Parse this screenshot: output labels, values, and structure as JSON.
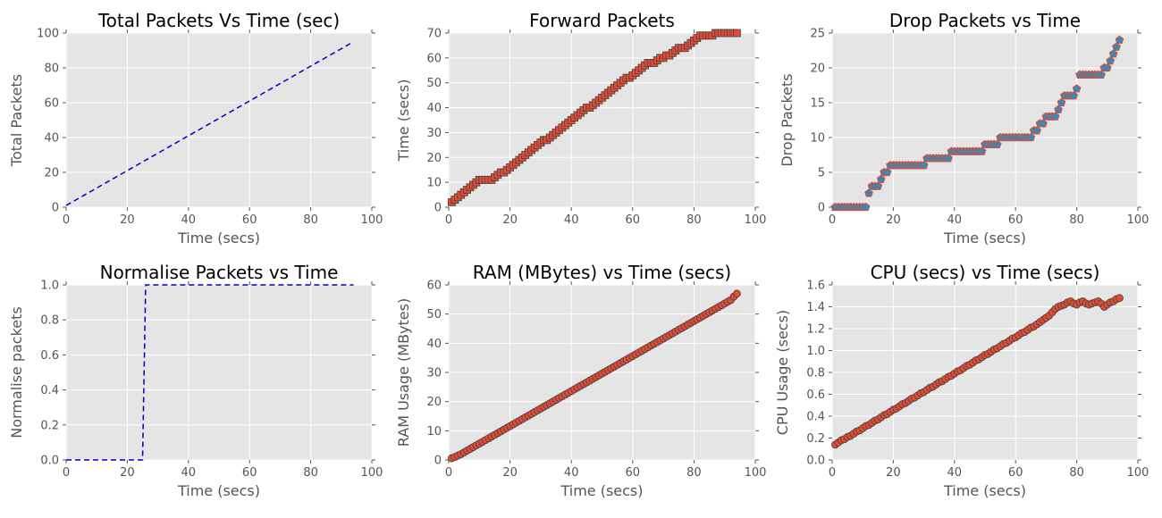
{
  "colors": {
    "plot_bg": "#e5e5e5",
    "grid": "#ffffff",
    "tick": "#555555",
    "line": "#0000cc",
    "marker_red": "#e24a33",
    "marker_blue": "#348abd",
    "marker_edge": "#444444"
  },
  "chart_data": [
    {
      "id": "total",
      "type": "line",
      "title": "Total Packets Vs Time (sec)",
      "xlabel": "Time (secs)",
      "ylabel": "Total Packets",
      "xlim": [
        0,
        100
      ],
      "ylim": [
        0,
        100
      ],
      "xticks": [
        0,
        20,
        40,
        60,
        80,
        100
      ],
      "yticks": [
        0,
        20,
        40,
        60,
        80,
        100
      ],
      "tick_labels_x": [
        "0",
        "20",
        "40",
        "60",
        "80",
        "100"
      ],
      "tick_labels_y": [
        "0",
        "20",
        "40",
        "60",
        "80",
        "100"
      ],
      "style": "dashed",
      "x": [
        0,
        94
      ],
      "y": [
        1,
        95
      ]
    },
    {
      "id": "forward",
      "type": "scatter",
      "title": "Forward Packets",
      "xlabel": "",
      "ylabel": "Time (secs)",
      "xlim": [
        0,
        100
      ],
      "ylim": [
        0,
        70
      ],
      "xticks": [
        0,
        20,
        40,
        60,
        80,
        100
      ],
      "yticks": [
        0,
        10,
        20,
        30,
        40,
        50,
        60,
        70
      ],
      "tick_labels_x": [
        "0",
        "20",
        "40",
        "60",
        "80",
        "100"
      ],
      "tick_labels_y": [
        "0",
        "10",
        "20",
        "30",
        "40",
        "50",
        "60",
        "70"
      ],
      "marker": "square",
      "x": [
        1,
        2,
        3,
        4,
        5,
        6,
        7,
        8,
        9,
        10,
        11,
        12,
        13,
        14,
        15,
        16,
        17,
        18,
        19,
        20,
        21,
        22,
        23,
        24,
        25,
        26,
        27,
        28,
        29,
        30,
        31,
        32,
        33,
        34,
        35,
        36,
        37,
        38,
        39,
        40,
        41,
        42,
        43,
        44,
        45,
        46,
        47,
        48,
        49,
        50,
        51,
        52,
        53,
        54,
        55,
        56,
        57,
        58,
        59,
        60,
        61,
        62,
        63,
        64,
        65,
        66,
        67,
        68,
        69,
        70,
        71,
        72,
        73,
        74,
        75,
        76,
        77,
        78,
        79,
        80,
        81,
        82,
        83,
        84,
        85,
        86,
        87,
        88,
        89,
        90,
        91,
        92,
        93,
        94
      ],
      "y": [
        2,
        3,
        4,
        5,
        6,
        7,
        8,
        9,
        10,
        11,
        11,
        11,
        11,
        11,
        12,
        13,
        14,
        14,
        15,
        16,
        17,
        18,
        19,
        20,
        21,
        22,
        23,
        24,
        25,
        26,
        27,
        27,
        28,
        29,
        30,
        31,
        32,
        33,
        34,
        35,
        36,
        37,
        38,
        39,
        40,
        40,
        41,
        42,
        43,
        44,
        45,
        46,
        47,
        48,
        49,
        50,
        51,
        52,
        52,
        53,
        54,
        55,
        56,
        57,
        58,
        58,
        58,
        59,
        60,
        60,
        61,
        61,
        62,
        63,
        64,
        64,
        64,
        65,
        66,
        67,
        68,
        69,
        69,
        69,
        69,
        69,
        70,
        70,
        70,
        70,
        70,
        70,
        70,
        70
      ]
    },
    {
      "id": "drop",
      "type": "scatter",
      "title": "Drop Packets vs Time",
      "xlabel": "Time (secs)",
      "ylabel": "Drop Packets",
      "xlim": [
        0,
        100
      ],
      "ylim": [
        0,
        25
      ],
      "xticks": [
        0,
        20,
        40,
        60,
        80,
        100
      ],
      "yticks": [
        0,
        5,
        10,
        15,
        20,
        25
      ],
      "tick_labels_x": [
        "0",
        "20",
        "40",
        "60",
        "80",
        "100"
      ],
      "tick_labels_y": [
        "0",
        "5",
        "10",
        "15",
        "20",
        "25"
      ],
      "marker": "pentagon",
      "x": [
        1,
        2,
        3,
        4,
        5,
        6,
        7,
        8,
        9,
        10,
        11,
        12,
        13,
        14,
        15,
        16,
        17,
        18,
        19,
        20,
        21,
        22,
        23,
        24,
        25,
        26,
        27,
        28,
        29,
        30,
        31,
        32,
        33,
        34,
        35,
        36,
        37,
        38,
        39,
        40,
        41,
        42,
        43,
        44,
        45,
        46,
        47,
        48,
        49,
        50,
        51,
        52,
        53,
        54,
        55,
        56,
        57,
        58,
        59,
        60,
        61,
        62,
        63,
        64,
        65,
        66,
        67,
        68,
        69,
        70,
        71,
        72,
        73,
        74,
        75,
        76,
        77,
        78,
        79,
        80,
        81,
        82,
        83,
        84,
        85,
        86,
        87,
        88,
        89,
        90,
        91,
        92,
        93,
        94
      ],
      "y": [
        0,
        0,
        0,
        0,
        0,
        0,
        0,
        0,
        0,
        0,
        0,
        2,
        3,
        3,
        3,
        4,
        5,
        5,
        6,
        6,
        6,
        6,
        6,
        6,
        6,
        6,
        6,
        6,
        6,
        6,
        7,
        7,
        7,
        7,
        7,
        7,
        7,
        7,
        8,
        8,
        8,
        8,
        8,
        8,
        8,
        8,
        8,
        8,
        8,
        9,
        9,
        9,
        9,
        9,
        10,
        10,
        10,
        10,
        10,
        10,
        10,
        10,
        10,
        10,
        10,
        11,
        11,
        12,
        12,
        13,
        13,
        13,
        13,
        14,
        15,
        16,
        16,
        16,
        16,
        17,
        19,
        19,
        19,
        19,
        19,
        19,
        19,
        19,
        20,
        20,
        21,
        22,
        23,
        24
      ]
    },
    {
      "id": "normalise",
      "type": "line",
      "title": "Normalise Packets vs Time",
      "xlabel": "Time (secs)",
      "ylabel": "Normalise packets",
      "xlim": [
        0,
        100
      ],
      "ylim": [
        0.0,
        1.0
      ],
      "xticks": [
        0,
        20,
        40,
        60,
        80,
        100
      ],
      "yticks": [
        0.0,
        0.2,
        0.4,
        0.6,
        0.8,
        1.0
      ],
      "tick_labels_x": [
        "0",
        "20",
        "40",
        "60",
        "80",
        "100"
      ],
      "tick_labels_y": [
        "0.0",
        "0.2",
        "0.4",
        "0.6",
        "0.8",
        "1.0"
      ],
      "style": "dashed",
      "x": [
        0,
        25,
        26,
        94
      ],
      "y": [
        0.0,
        0.0,
        1.0,
        1.0
      ]
    },
    {
      "id": "ram",
      "type": "scatter",
      "title": "RAM (MBytes) vs Time (secs)",
      "xlabel": "Time (secs)",
      "ylabel": "RAM Usage (MBytes)",
      "xlim": [
        0,
        100
      ],
      "ylim": [
        0,
        60
      ],
      "xticks": [
        0,
        20,
        40,
        60,
        80,
        100
      ],
      "yticks": [
        0,
        10,
        20,
        30,
        40,
        50,
        60
      ],
      "tick_labels_x": [
        "0",
        "20",
        "40",
        "60",
        "80",
        "100"
      ],
      "tick_labels_y": [
        "0",
        "10",
        "20",
        "30",
        "40",
        "50",
        "60"
      ],
      "marker": "circle",
      "x": [
        1,
        2,
        3,
        4,
        5,
        6,
        7,
        8,
        9,
        10,
        11,
        12,
        13,
        14,
        15,
        16,
        17,
        18,
        19,
        20,
        21,
        22,
        23,
        24,
        25,
        26,
        27,
        28,
        29,
        30,
        31,
        32,
        33,
        34,
        35,
        36,
        37,
        38,
        39,
        40,
        41,
        42,
        43,
        44,
        45,
        46,
        47,
        48,
        49,
        50,
        51,
        52,
        53,
        54,
        55,
        56,
        57,
        58,
        59,
        60,
        61,
        62,
        63,
        64,
        65,
        66,
        67,
        68,
        69,
        70,
        71,
        72,
        73,
        74,
        75,
        76,
        77,
        78,
        79,
        80,
        81,
        82,
        83,
        84,
        85,
        86,
        87,
        88,
        89,
        90,
        91,
        92,
        93,
        94
      ],
      "y": [
        0.6,
        1.0,
        1.5,
        2.0,
        2.6,
        3.2,
        3.8,
        4.4,
        5.0,
        5.6,
        6.2,
        6.8,
        7.4,
        8.0,
        8.6,
        9.2,
        9.8,
        10.4,
        11.0,
        11.6,
        12.2,
        12.8,
        13.4,
        14.0,
        14.6,
        15.2,
        15.8,
        16.4,
        17.0,
        17.6,
        18.2,
        18.8,
        19.4,
        20.0,
        20.6,
        21.2,
        21.8,
        22.4,
        23.0,
        23.6,
        24.2,
        24.8,
        25.4,
        26.0,
        26.6,
        27.2,
        27.8,
        28.4,
        29.0,
        29.6,
        30.2,
        30.8,
        31.4,
        32.0,
        32.6,
        33.2,
        33.8,
        34.4,
        35.0,
        35.6,
        36.2,
        36.8,
        37.4,
        38.0,
        38.6,
        39.2,
        39.8,
        40.4,
        41.0,
        41.6,
        42.2,
        42.8,
        43.4,
        44.0,
        44.6,
        45.2,
        45.8,
        46.4,
        47.0,
        47.6,
        48.2,
        48.8,
        49.4,
        50.0,
        50.6,
        51.2,
        51.8,
        52.4,
        53.0,
        53.6,
        54.2,
        54.8,
        56.0,
        57.0
      ]
    },
    {
      "id": "cpu",
      "type": "scatter",
      "title": "CPU (secs) vs Time (secs)",
      "xlabel": "Time (secs)",
      "ylabel": "CPU Usage (secs)",
      "xlim": [
        0,
        100
      ],
      "ylim": [
        0.0,
        1.6
      ],
      "xticks": [
        0,
        20,
        40,
        60,
        80,
        100
      ],
      "yticks": [
        0.0,
        0.2,
        0.4,
        0.6,
        0.8,
        1.0,
        1.2,
        1.4,
        1.6
      ],
      "tick_labels_x": [
        "0",
        "20",
        "40",
        "60",
        "80",
        "100"
      ],
      "tick_labels_y": [
        "0.0",
        "0.2",
        "0.4",
        "0.6",
        "0.8",
        "1.0",
        "1.2",
        "1.4",
        "1.6"
      ],
      "marker": "circle",
      "x": [
        1,
        2,
        3,
        4,
        5,
        6,
        7,
        8,
        9,
        10,
        11,
        12,
        13,
        14,
        15,
        16,
        17,
        18,
        19,
        20,
        21,
        22,
        23,
        24,
        25,
        26,
        27,
        28,
        29,
        30,
        31,
        32,
        33,
        34,
        35,
        36,
        37,
        38,
        39,
        40,
        41,
        42,
        43,
        44,
        45,
        46,
        47,
        48,
        49,
        50,
        51,
        52,
        53,
        54,
        55,
        56,
        57,
        58,
        59,
        60,
        61,
        62,
        63,
        64,
        65,
        66,
        67,
        68,
        69,
        70,
        71,
        72,
        73,
        74,
        75,
        76,
        77,
        78,
        79,
        80,
        81,
        82,
        83,
        84,
        85,
        86,
        87,
        88,
        89,
        90,
        91,
        92,
        93,
        94
      ],
      "y": [
        0.14,
        0.16,
        0.18,
        0.19,
        0.21,
        0.22,
        0.24,
        0.26,
        0.27,
        0.29,
        0.31,
        0.32,
        0.34,
        0.36,
        0.37,
        0.39,
        0.41,
        0.42,
        0.44,
        0.46,
        0.47,
        0.49,
        0.51,
        0.52,
        0.54,
        0.56,
        0.57,
        0.59,
        0.61,
        0.62,
        0.64,
        0.66,
        0.67,
        0.69,
        0.71,
        0.72,
        0.74,
        0.76,
        0.77,
        0.79,
        0.81,
        0.82,
        0.84,
        0.86,
        0.87,
        0.89,
        0.91,
        0.92,
        0.94,
        0.96,
        0.97,
        0.99,
        1.01,
        1.02,
        1.04,
        1.06,
        1.07,
        1.09,
        1.11,
        1.12,
        1.14,
        1.16,
        1.17,
        1.19,
        1.21,
        1.22,
        1.24,
        1.26,
        1.28,
        1.3,
        1.32,
        1.35,
        1.38,
        1.4,
        1.41,
        1.42,
        1.44,
        1.45,
        1.43,
        1.42,
        1.44,
        1.45,
        1.43,
        1.42,
        1.43,
        1.44,
        1.45,
        1.43,
        1.4,
        1.42,
        1.44,
        1.45,
        1.47,
        1.48
      ]
    }
  ]
}
